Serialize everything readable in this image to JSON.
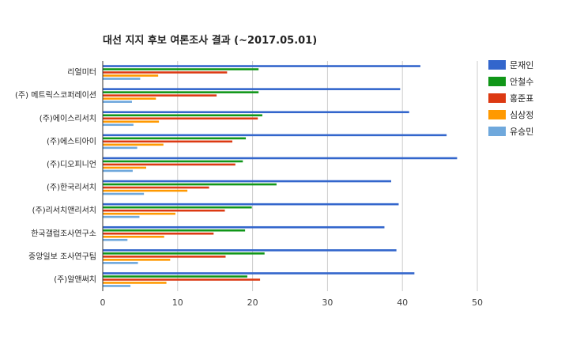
{
  "chart_data": {
    "type": "bar",
    "orientation": "horizontal",
    "title": "대선 지지 후보 여론조사 결과 (~2017.05.01)",
    "xlabel": "",
    "ylabel": "",
    "xlim": [
      0,
      50
    ],
    "xticks": [
      0,
      10,
      20,
      30,
      40,
      50
    ],
    "grid": true,
    "legend_position": "right",
    "categories": [
      "리얼미터",
      "(주) 메트릭스코퍼레이션",
      "(주)에이스리서치",
      "(주)에스티아이",
      "(주)디오피니언",
      "(주)한국리서치",
      "(주)리서치앤리서치",
      "한국갤럽조사연구소",
      "중앙일보 조사연구팀",
      "(주)알앤써치"
    ],
    "series": [
      {
        "name": "문재인",
        "color": "#3366cc",
        "values": [
          42.4,
          39.7,
          40.9,
          45.9,
          47.3,
          38.5,
          39.5,
          37.6,
          39.2,
          41.6
        ]
      },
      {
        "name": "안철수",
        "color": "#109618",
        "values": [
          20.8,
          20.8,
          21.3,
          19.1,
          18.7,
          23.2,
          19.9,
          19.0,
          21.6,
          19.3
        ]
      },
      {
        "name": "홍준표",
        "color": "#dc3912",
        "values": [
          16.6,
          15.2,
          20.7,
          17.3,
          17.7,
          14.2,
          16.3,
          14.8,
          16.4,
          21.0
        ]
      },
      {
        "name": "심상정",
        "color": "#ff9900",
        "values": [
          7.4,
          7.1,
          7.5,
          8.1,
          5.8,
          11.3,
          9.7,
          8.2,
          9.0,
          8.5
        ]
      },
      {
        "name": "유승민",
        "color": "#6fa8dc",
        "values": [
          5.0,
          3.9,
          4.1,
          4.6,
          4.0,
          5.5,
          4.9,
          3.3,
          4.7,
          3.7
        ]
      }
    ]
  }
}
